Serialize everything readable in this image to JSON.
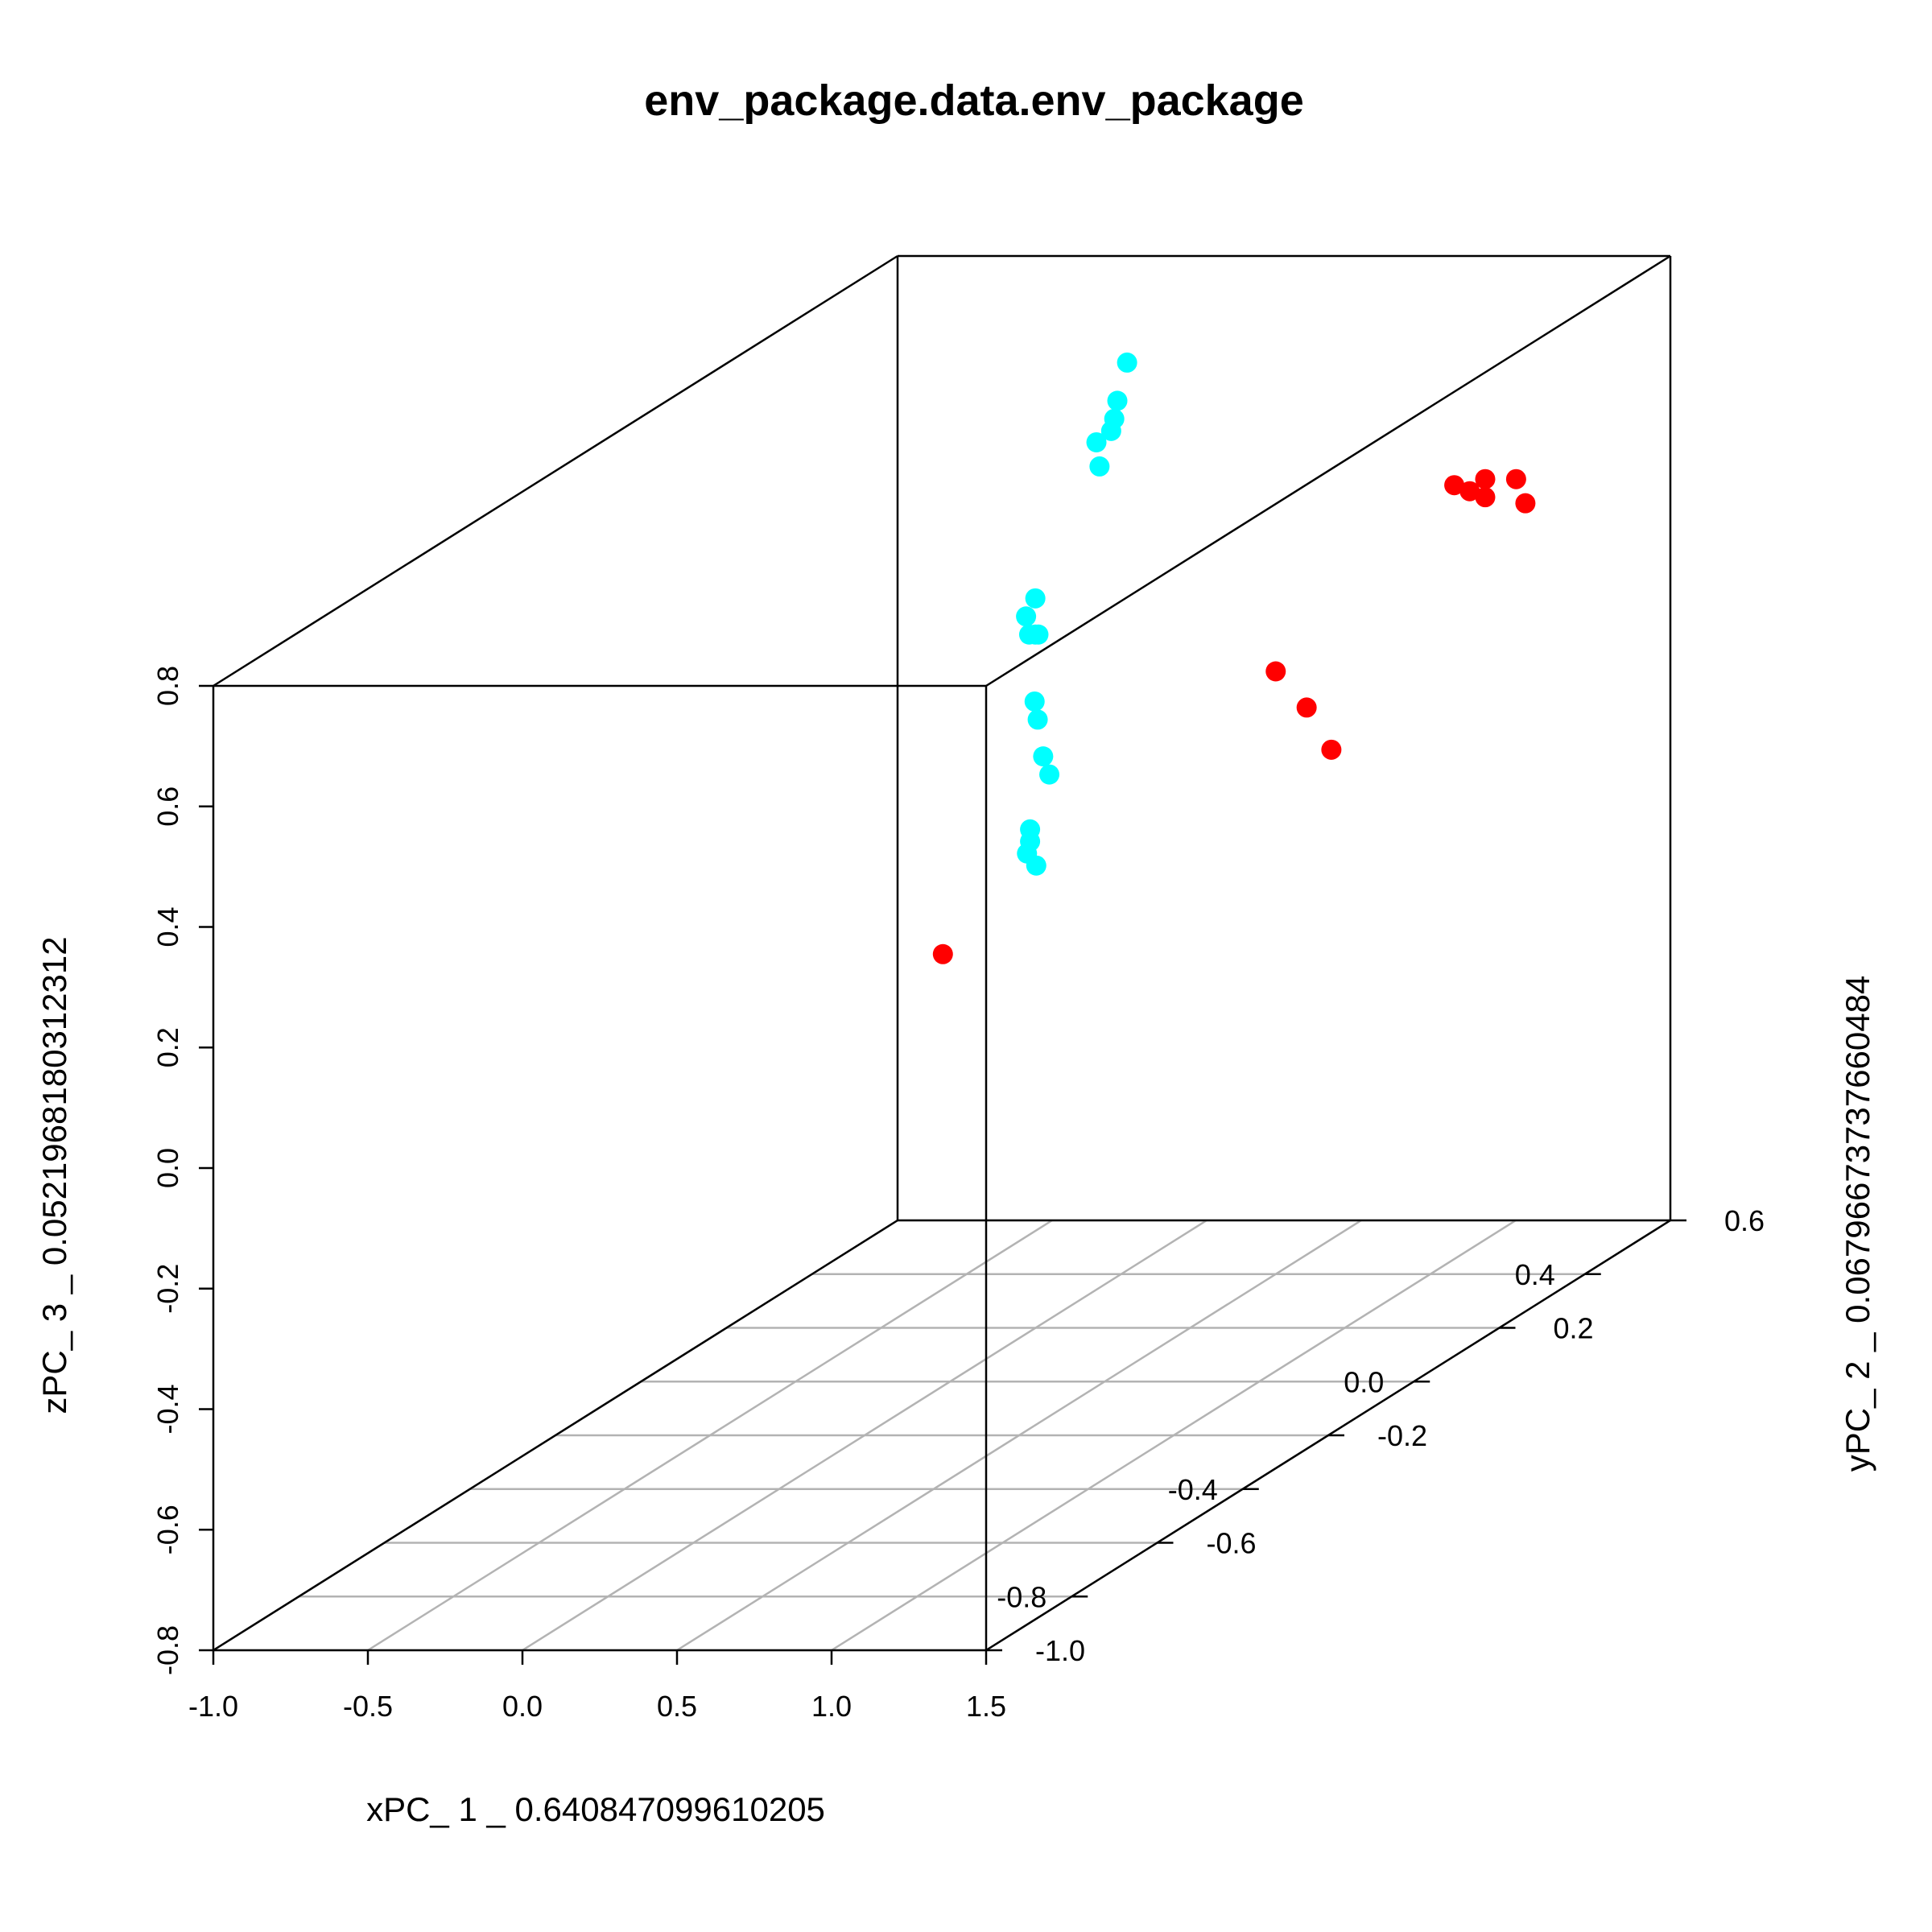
{
  "chart_data": {
    "type": "scatter",
    "title": "env_package.data.env_package",
    "xlabel": "xPC_ 1 _ 0.640847099610205",
    "ylabel": "yPC_ 2 _ 0.0679667373766048​4",
    "zlabel": "zPC_ 3 _ 0.0521968180312312",
    "x_ticks": [
      "-1.0",
      "-0.5",
      "0.0",
      "0.5",
      "1.0",
      "1.5"
    ],
    "y_ticks": [
      "-1.0",
      "-0.8",
      "-0.6",
      "-0.4",
      "-0.2",
      "0.0",
      "0.2",
      "0.4",
      "0.6"
    ],
    "z_ticks": [
      "-0.8",
      "-0.6",
      "-0.4",
      "-0.2",
      "0.0",
      "0.2",
      "0.4",
      "0.6",
      "0.8"
    ],
    "xlim": [
      -1.0,
      1.5
    ],
    "ylim": [
      -1.0,
      0.6
    ],
    "zlim": [
      -0.8,
      0.8
    ],
    "grid": "xy-floor",
    "colors": {
      "group_a": "#00FFFF",
      "group_b": "#FF0000",
      "frame": "#000000",
      "grid": "#B3B3B3"
    },
    "series": [
      {
        "color": "#00FFFF",
        "points": [
          [
            -0.05,
            0.45,
            0.69
          ],
          [
            -0.04,
            0.42,
            0.64
          ],
          [
            -0.05,
            0.42,
            0.61
          ],
          [
            -0.06,
            0.42,
            0.59
          ],
          [
            -0.08,
            0.4,
            0.58
          ],
          [
            -0.07,
            0.4,
            0.54
          ],
          [
            -0.25,
            0.38,
            0.33
          ],
          [
            -0.28,
            0.38,
            0.3
          ],
          [
            -0.27,
            0.38,
            0.27
          ],
          [
            -0.25,
            0.38,
            0.27
          ],
          [
            -0.24,
            0.38,
            0.27
          ],
          [
            -0.28,
            0.4,
            0.15
          ],
          [
            -0.27,
            0.4,
            0.12
          ],
          [
            -0.28,
            0.42,
            0.05
          ],
          [
            -0.26,
            0.42,
            0.02
          ],
          [
            -0.35,
            0.44,
            -0.08
          ],
          [
            -0.35,
            0.44,
            -0.1
          ],
          [
            -0.36,
            0.44,
            -0.12
          ],
          [
            -0.33,
            0.44,
            -0.14
          ]
        ]
      },
      {
        "color": "#FF0000",
        "points": [
          [
            -0.3,
            0.2,
            -0.18
          ],
          [
            0.5,
            0.4,
            0.2
          ],
          [
            0.6,
            0.4,
            0.14
          ],
          [
            0.68,
            0.4,
            0.07
          ],
          [
            1.05,
            0.42,
            0.5
          ],
          [
            1.1,
            0.42,
            0.49
          ],
          [
            1.15,
            0.42,
            0.48
          ],
          [
            1.15,
            0.42,
            0.51
          ],
          [
            1.25,
            0.42,
            0.51
          ],
          [
            1.28,
            0.42,
            0.47
          ]
        ]
      }
    ]
  }
}
